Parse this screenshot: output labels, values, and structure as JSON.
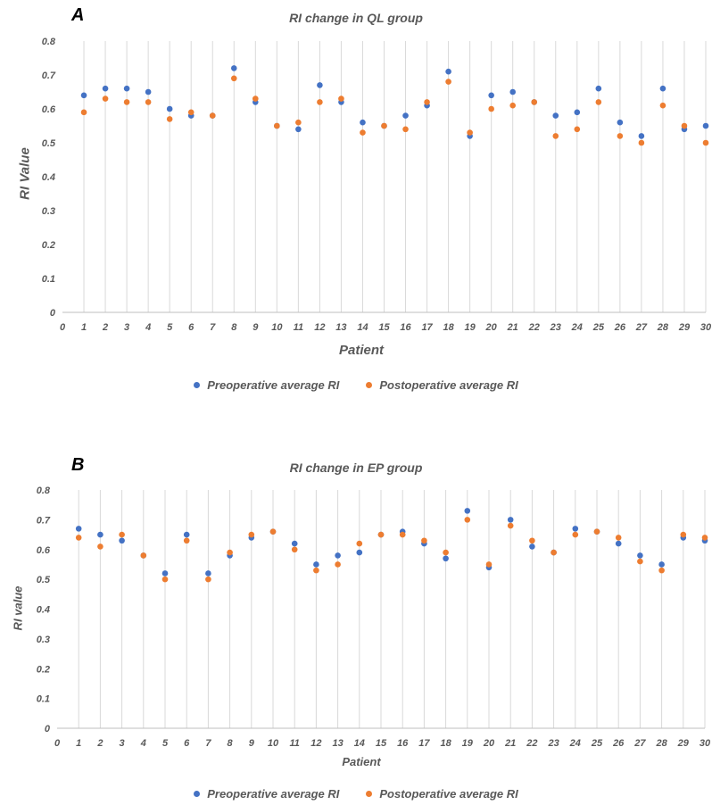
{
  "chart_data": [
    {
      "type": "scatter",
      "panel_label": "A",
      "title": "RI change in QL group",
      "xlabel": "Patient",
      "ylabel": "RI Value",
      "xlim": [
        0,
        30
      ],
      "ylim": [
        0,
        0.8
      ],
      "x_ticks": [
        0,
        1,
        2,
        3,
        4,
        5,
        6,
        7,
        8,
        9,
        10,
        11,
        12,
        13,
        14,
        15,
        16,
        17,
        18,
        19,
        20,
        21,
        22,
        23,
        24,
        25,
        26,
        27,
        28,
        29,
        30
      ],
      "y_ticks": [
        0,
        0.1,
        0.2,
        0.3,
        0.4,
        0.5,
        0.6,
        0.7,
        0.8
      ],
      "grid": "vertical",
      "legend_position": "bottom",
      "series": [
        {
          "name": "Preoperative average RI",
          "color": "#4472C4",
          "x": [
            1,
            2,
            3,
            4,
            5,
            6,
            7,
            8,
            9,
            10,
            11,
            12,
            13,
            14,
            15,
            16,
            17,
            18,
            19,
            20,
            21,
            22,
            23,
            24,
            25,
            26,
            27,
            28,
            29,
            30
          ],
          "values": [
            0.64,
            0.66,
            0.66,
            0.65,
            0.6,
            0.58,
            0.58,
            0.72,
            0.62,
            0.55,
            0.54,
            0.67,
            0.62,
            0.56,
            0.55,
            0.58,
            0.61,
            0.71,
            0.52,
            0.64,
            0.65,
            0.62,
            0.58,
            0.59,
            0.66,
            0.56,
            0.52,
            0.66,
            0.54,
            0.55
          ]
        },
        {
          "name": "Postoperative average RI",
          "color": "#ED7D31",
          "x": [
            1,
            2,
            3,
            4,
            5,
            6,
            7,
            8,
            9,
            10,
            11,
            12,
            13,
            14,
            15,
            16,
            17,
            18,
            19,
            20,
            21,
            22,
            23,
            24,
            25,
            26,
            27,
            28,
            29,
            30
          ],
          "values": [
            0.59,
            0.63,
            0.62,
            0.62,
            0.57,
            0.59,
            0.58,
            0.69,
            0.63,
            0.55,
            0.56,
            0.62,
            0.63,
            0.53,
            0.55,
            0.54,
            0.62,
            0.68,
            0.53,
            0.6,
            0.61,
            0.62,
            0.52,
            0.54,
            0.62,
            0.52,
            0.5,
            0.61,
            0.55,
            0.5
          ]
        }
      ]
    },
    {
      "type": "scatter",
      "panel_label": "B",
      "title": "RI change in EP group",
      "xlabel": "Patient",
      "ylabel": "RI value",
      "xlim": [
        0,
        30
      ],
      "ylim": [
        0,
        0.8
      ],
      "x_ticks": [
        0,
        1,
        2,
        3,
        4,
        5,
        6,
        7,
        8,
        9,
        10,
        11,
        12,
        13,
        14,
        15,
        16,
        17,
        18,
        19,
        20,
        21,
        22,
        23,
        24,
        25,
        26,
        27,
        28,
        29,
        30
      ],
      "y_ticks": [
        0,
        0.1,
        0.2,
        0.3,
        0.4,
        0.5,
        0.6,
        0.7,
        0.8
      ],
      "grid": "vertical",
      "legend_position": "bottom",
      "series": [
        {
          "name": "Preoperative average RI",
          "color": "#4472C4",
          "x": [
            1,
            2,
            3,
            4,
            5,
            6,
            7,
            8,
            9,
            10,
            11,
            12,
            13,
            14,
            15,
            16,
            17,
            18,
            19,
            20,
            21,
            22,
            23,
            24,
            25,
            26,
            27,
            28,
            29,
            30
          ],
          "values": [
            0.67,
            0.65,
            0.63,
            0.58,
            0.52,
            0.65,
            0.52,
            0.58,
            0.64,
            0.66,
            0.62,
            0.55,
            0.58,
            0.59,
            0.65,
            0.66,
            0.62,
            0.57,
            0.73,
            0.54,
            0.7,
            0.61,
            0.59,
            0.67,
            0.66,
            0.62,
            0.58,
            0.55,
            0.64,
            0.63
          ]
        },
        {
          "name": "Postoperative average RI",
          "color": "#ED7D31",
          "x": [
            1,
            2,
            3,
            4,
            5,
            6,
            7,
            8,
            9,
            10,
            11,
            12,
            13,
            14,
            15,
            16,
            17,
            18,
            19,
            20,
            21,
            22,
            23,
            24,
            25,
            26,
            27,
            28,
            29,
            30
          ],
          "values": [
            0.64,
            0.61,
            0.65,
            0.58,
            0.5,
            0.63,
            0.5,
            0.59,
            0.65,
            0.66,
            0.6,
            0.53,
            0.55,
            0.62,
            0.65,
            0.65,
            0.63,
            0.59,
            0.7,
            0.55,
            0.68,
            0.63,
            0.59,
            0.65,
            0.66,
            0.64,
            0.56,
            0.53,
            0.65,
            0.64
          ]
        }
      ]
    }
  ]
}
